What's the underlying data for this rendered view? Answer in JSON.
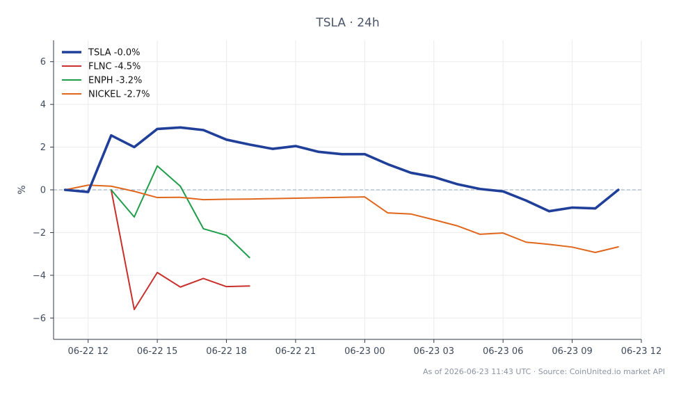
{
  "chart_data": {
    "type": "line",
    "title": "TSLA · 24h",
    "xlabel": "",
    "ylabel": "%",
    "x_start": "06-22 11:00",
    "x_range": [
      "06-22 10:30",
      "06-23 12:00"
    ],
    "x_ticks": [
      "06-22 12",
      "06-22 15",
      "06-22 18",
      "06-22 21",
      "06-23 00",
      "06-23 03",
      "06-23 06",
      "06-23 09",
      "06-23 12"
    ],
    "ylim": [
      -7,
      7
    ],
    "y_ticks": [
      6,
      4,
      2,
      0,
      -2,
      -4,
      -6
    ],
    "y_tick_labels": [
      "6",
      "4",
      "2",
      "0",
      "−2",
      "−4",
      "−6"
    ],
    "grid": true,
    "zero_reference_line": true,
    "legend_position": "top-left",
    "series": [
      {
        "name": "TSLA -0.0%",
        "color": "#1f3f99",
        "emphasis": true,
        "x": [
          "06-22 11:00",
          "06-22 12:00",
          "06-22 13:00",
          "06-22 14:00",
          "06-22 15:00",
          "06-22 16:00",
          "06-22 17:00",
          "06-22 18:00",
          "06-22 19:00",
          "06-22 20:00",
          "06-22 21:00",
          "06-22 22:00",
          "06-22 23:00",
          "06-23 00:00",
          "06-23 01:00",
          "06-23 02:00",
          "06-23 03:00",
          "06-23 04:00",
          "06-23 05:00",
          "06-23 06:00",
          "06-23 07:00",
          "06-23 08:00",
          "06-23 09:00",
          "06-23 10:00",
          "06-23 11:00"
        ],
        "values": [
          0.0,
          -0.1,
          2.55,
          2.0,
          2.85,
          2.92,
          2.8,
          2.35,
          2.12,
          1.92,
          2.05,
          1.78,
          1.67,
          1.67,
          1.2,
          0.8,
          0.6,
          0.27,
          0.04,
          -0.07,
          -0.5,
          -1.0,
          -0.83,
          -0.87,
          0.0
        ]
      },
      {
        "name": "FLNC -4.5%",
        "color": "#c9302c",
        "emphasis": false,
        "x": [
          "06-22 13:00",
          "06-22 14:00",
          "06-22 15:00",
          "06-22 16:00",
          "06-22 17:00",
          "06-22 18:00",
          "06-22 19:00"
        ],
        "values": [
          0.0,
          -5.6,
          -3.87,
          -4.55,
          -4.15,
          -4.53,
          -4.5
        ]
      },
      {
        "name": "ENPH -3.2%",
        "color": "#1e9e4a",
        "emphasis": false,
        "x": [
          "06-22 13:00",
          "06-22 14:00",
          "06-22 15:00",
          "06-22 16:00",
          "06-22 17:00",
          "06-22 18:00",
          "06-22 19:00"
        ],
        "values": [
          0.0,
          -1.27,
          1.12,
          0.17,
          -1.82,
          -2.13,
          -3.17
        ]
      },
      {
        "name": "NICKEL -2.7%",
        "color": "#e0661b",
        "emphasis": false,
        "x": [
          "06-22 11:00",
          "06-22 12:00",
          "06-22 13:00",
          "06-22 14:00",
          "06-22 15:00",
          "06-22 16:00",
          "06-22 17:00",
          "06-22 18:00",
          "06-22 19:00",
          "06-22 20:00",
          "06-22 21:00",
          "06-22 22:00",
          "06-22 23:00",
          "06-23 00:00",
          "06-23 01:00",
          "06-23 02:00",
          "06-23 03:00",
          "06-23 04:00",
          "06-23 05:00",
          "06-23 06:00",
          "06-23 07:00",
          "06-23 08:00",
          "06-23 09:00",
          "06-23 10:00",
          "06-23 11:00"
        ],
        "values": [
          0.0,
          0.22,
          0.17,
          -0.07,
          -0.36,
          -0.35,
          -0.46,
          -0.44,
          -0.43,
          -0.41,
          -0.39,
          -0.37,
          -0.35,
          -0.33,
          -1.08,
          -1.13,
          -1.4,
          -1.68,
          -2.08,
          -2.02,
          -2.45,
          -2.55,
          -2.68,
          -2.93,
          -2.67
        ]
      }
    ]
  },
  "footnote": "As of 2026-06-23 11:43 UTC · Source: CoinUnited.io market API"
}
